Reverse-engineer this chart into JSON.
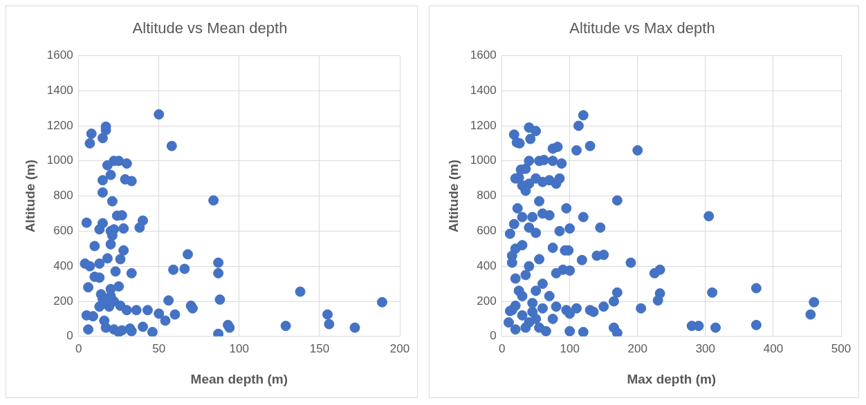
{
  "chart_data": [
    {
      "type": "scatter",
      "title": "Altitude vs Mean depth",
      "xlabel": "Mean depth (m)",
      "ylabel": "Altitude (m)",
      "color": "#4472c4",
      "marker": "circle",
      "grid": true,
      "xlim": [
        0,
        200
      ],
      "xticks": [
        0,
        50,
        100,
        150,
        200
      ],
      "ylim": [
        0,
        1600
      ],
      "yticks": [
        0,
        200,
        400,
        600,
        800,
        1000,
        1200,
        1400,
        1600
      ],
      "x": [
        50,
        17,
        17,
        8,
        15,
        7,
        58,
        22,
        25,
        30,
        18,
        20,
        15,
        29,
        33,
        15,
        21,
        84,
        40,
        15,
        5,
        27,
        24,
        38,
        13,
        22,
        28,
        20,
        21,
        10,
        20,
        28,
        26,
        18,
        68,
        87,
        4,
        7,
        13,
        59,
        66,
        87,
        33,
        23,
        10,
        13,
        6,
        25,
        20,
        15,
        20,
        14,
        17,
        22,
        56,
        88,
        138,
        19,
        13,
        26,
        30,
        36,
        43,
        50,
        60,
        70,
        71,
        5,
        9,
        16,
        54,
        155,
        93,
        94,
        129,
        156,
        172,
        189,
        17,
        6,
        22,
        27,
        33,
        46,
        40,
        87,
        25,
        32
      ],
      "values": [
        1265,
        1195,
        1175,
        1155,
        1130,
        1100,
        1085,
        1000,
        1000,
        985,
        975,
        920,
        890,
        895,
        885,
        820,
        770,
        775,
        660,
        645,
        648,
        690,
        688,
        620,
        610,
        610,
        615,
        600,
        575,
        515,
        525,
        490,
        440,
        445,
        468,
        420,
        415,
        400,
        415,
        380,
        385,
        360,
        360,
        370,
        340,
        335,
        280,
        285,
        270,
        215,
        230,
        240,
        190,
        200,
        205,
        210,
        255,
        170,
        170,
        175,
        150,
        150,
        150,
        130,
        125,
        175,
        160,
        120,
        115,
        90,
        90,
        125,
        65,
        50,
        60,
        70,
        50,
        195,
        50,
        40,
        40,
        35,
        30,
        25,
        55,
        15,
        25,
        45
      ]
    },
    {
      "type": "scatter",
      "title": "Altitude vs Max depth",
      "xlabel": "Max depth (m)",
      "ylabel": "Altitude (m)",
      "color": "#4472c4",
      "marker": "circle",
      "grid": true,
      "xlim": [
        0,
        500
      ],
      "xticks": [
        0,
        100,
        200,
        300,
        400,
        500
      ],
      "ylim": [
        0,
        1600
      ],
      "yticks": [
        0,
        200,
        400,
        600,
        800,
        1000,
        1200,
        1400,
        1600
      ],
      "x": [
        120,
        113,
        40,
        50,
        18,
        42,
        22,
        26,
        110,
        130,
        200,
        75,
        82,
        40,
        55,
        62,
        75,
        88,
        85,
        70,
        28,
        35,
        20,
        25,
        30,
        40,
        50,
        60,
        80,
        35,
        23,
        55,
        95,
        120,
        170,
        305,
        30,
        45,
        60,
        70,
        18,
        12,
        40,
        85,
        100,
        145,
        50,
        20,
        15,
        30,
        75,
        93,
        98,
        150,
        140,
        15,
        40,
        55,
        118,
        190,
        90,
        100,
        225,
        233,
        20,
        35,
        80,
        25,
        50,
        30,
        60,
        70,
        110,
        170,
        233,
        310,
        375,
        15,
        20,
        45,
        60,
        80,
        95,
        100,
        130,
        135,
        165,
        230,
        205,
        150,
        10,
        20,
        40,
        55,
        65,
        75,
        100,
        120,
        165,
        170,
        280,
        290,
        315,
        375,
        455,
        460,
        12,
        30,
        50,
        45,
        35
      ],
      "values": [
        1260,
        1200,
        1190,
        1170,
        1150,
        1125,
        1105,
        1100,
        1060,
        1085,
        1060,
        1070,
        1080,
        1000,
        1000,
        1005,
        1000,
        985,
        900,
        890,
        950,
        955,
        900,
        905,
        860,
        870,
        900,
        880,
        870,
        830,
        730,
        770,
        730,
        680,
        775,
        685,
        680,
        680,
        700,
        690,
        640,
        585,
        620,
        600,
        615,
        620,
        590,
        500,
        460,
        520,
        505,
        490,
        490,
        465,
        460,
        420,
        400,
        440,
        435,
        420,
        380,
        375,
        360,
        380,
        330,
        350,
        360,
        260,
        260,
        230,
        300,
        230,
        160,
        250,
        245,
        250,
        275,
        150,
        175,
        190,
        160,
        170,
        150,
        130,
        150,
        140,
        200,
        205,
        160,
        170,
        80,
        40,
        80,
        50,
        30,
        100,
        30,
        25,
        50,
        20,
        60,
        60,
        50,
        65,
        125,
        195,
        145,
        120,
        100,
        140,
        50
      ]
    }
  ]
}
